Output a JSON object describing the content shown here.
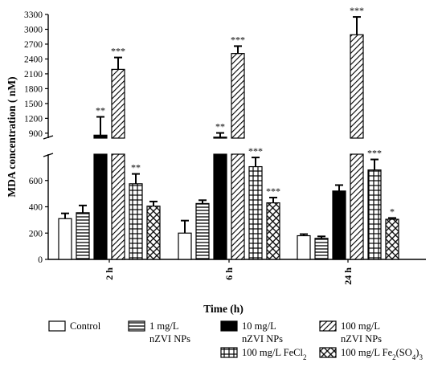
{
  "chart_data": {
    "type": "bar",
    "ylabel": "MDA concentration ( nM)",
    "xlabel": "Time (h)",
    "categories": [
      "2 h",
      "6 h",
      "24 h"
    ],
    "y_axis": {
      "broken": true,
      "lower_range": [
        0,
        800
      ],
      "lower_ticks": [
        "0",
        "200",
        "400",
        "600"
      ],
      "upper_range": [
        800,
        3300
      ],
      "upper_ticks": [
        "900",
        "1200",
        "1500",
        "1800",
        "2100",
        "2400",
        "2700",
        "3000",
        "3300"
      ]
    },
    "series": [
      {
        "name": "Control",
        "pattern": "open",
        "values": [
          310,
          200,
          180
        ],
        "errors": [
          40,
          95,
          12
        ],
        "significance": [
          "",
          "",
          ""
        ]
      },
      {
        "name": "1 mg/L nZVI NPs",
        "pattern": "horizontal-lines",
        "values": [
          355,
          425,
          160
        ],
        "errors": [
          55,
          25,
          15
        ],
        "significance": [
          "",
          "",
          ""
        ]
      },
      {
        "name": "10 mg/L nZVI NPs",
        "pattern": "solid",
        "values": [
          860,
          820,
          520
        ],
        "errors": [
          370,
          85,
          45
        ],
        "significance": [
          "**",
          "**",
          ""
        ]
      },
      {
        "name": "100 mg/L nZVI NPs",
        "pattern": "diagonal",
        "values": [
          2190,
          2510,
          2890
        ],
        "errors": [
          240,
          150,
          360
        ],
        "significance": [
          "***",
          "***",
          "***"
        ]
      },
      {
        "name": "100 mg/L  FeCl2",
        "pattern": "grid",
        "values": [
          575,
          705,
          680
        ],
        "errors": [
          75,
          70,
          80
        ],
        "significance": [
          "**",
          "***",
          "***"
        ]
      },
      {
        "name": "100 mg/L Fe2(SO4)3",
        "pattern": "crosshatch",
        "values": [
          405,
          430,
          305
        ],
        "errors": [
          35,
          40,
          10
        ],
        "significance": [
          "",
          "***",
          "*"
        ]
      }
    ],
    "legend": {
      "placement": "bottom",
      "items": [
        {
          "line1": "Control",
          "line2": "",
          "pattern": "open"
        },
        {
          "line1": "1 mg/L",
          "line2": "nZVI NPs",
          "pattern": "horizontal-lines"
        },
        {
          "line1": "10 mg/L",
          "line2": "nZVI NPs",
          "pattern": "solid"
        },
        {
          "line1": "100 mg/L",
          "line2": "nZVI NPs",
          "pattern": "diagonal"
        },
        {
          "line1": "100 mg/L  FeCl",
          "sub": "2",
          "line2": "",
          "pattern": "grid"
        },
        {
          "line1": "100 mg/L Fe",
          "sub1": "2",
          "mid": "(SO",
          "sub2": "4",
          "end": ")",
          "sub3": "3",
          "line2": "",
          "pattern": "crosshatch"
        }
      ]
    },
    "colors": {
      "ink": "#000000",
      "background": "#ffffff"
    }
  }
}
